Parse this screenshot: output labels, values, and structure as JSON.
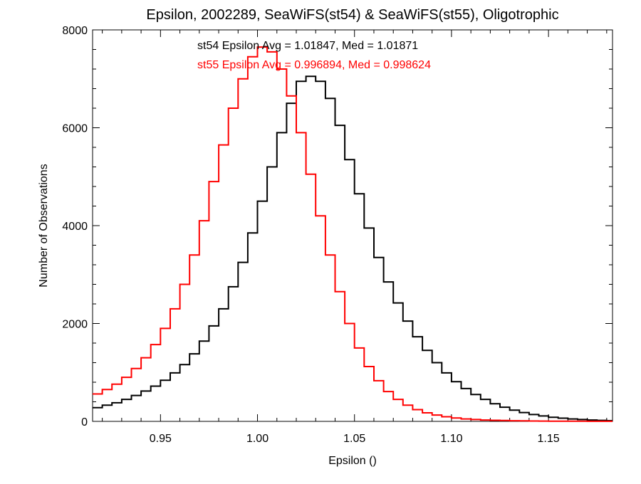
{
  "chart_data": {
    "type": "line",
    "title": "Epsilon, 2002289, SeaWiFS(st54) & SeaWiFS(st55), Oligotrophic",
    "xlabel": "Epsilon ()",
    "ylabel": "Number of Observations",
    "xlim": [
      0.915,
      1.183
    ],
    "ylim": [
      0,
      8000
    ],
    "x_ticks": [
      0.95,
      1.0,
      1.05,
      1.1,
      1.15
    ],
    "x_tick_labels": [
      "0.95",
      "1.00",
      "1.05",
      "1.10",
      "1.15"
    ],
    "y_ticks": [
      0,
      2000,
      4000,
      6000,
      8000
    ],
    "y_tick_labels": [
      "0",
      "2000",
      "4000",
      "6000",
      "8000"
    ],
    "grid": false,
    "annotations": [
      {
        "text": "st54 Epsilon Avg = 1.01847, Med = 1.01871",
        "color": "#000000"
      },
      {
        "text": "st55 Epsilon Avg = 0.996894, Med = 0.998624",
        "color": "#ff0000"
      }
    ],
    "series": [
      {
        "color": "#000000",
        "style": "step",
        "x": [
          0.915,
          0.92,
          0.925,
          0.93,
          0.935,
          0.94,
          0.945,
          0.95,
          0.955,
          0.96,
          0.965,
          0.97,
          0.975,
          0.98,
          0.985,
          0.99,
          0.995,
          1.0,
          1.005,
          1.01,
          1.015,
          1.02,
          1.025,
          1.03,
          1.035,
          1.04,
          1.045,
          1.05,
          1.055,
          1.06,
          1.065,
          1.07,
          1.075,
          1.08,
          1.085,
          1.09,
          1.095,
          1.1,
          1.105,
          1.11,
          1.115,
          1.12,
          1.125,
          1.13,
          1.135,
          1.14,
          1.145,
          1.15,
          1.155,
          1.16,
          1.165,
          1.17,
          1.175,
          1.18
        ],
        "values": [
          280,
          330,
          380,
          450,
          530,
          620,
          720,
          840,
          990,
          1160,
          1380,
          1640,
          1950,
          2300,
          2750,
          3250,
          3850,
          4500,
          5200,
          5900,
          6500,
          6950,
          7050,
          6950,
          6600,
          6050,
          5350,
          4650,
          3950,
          3350,
          2850,
          2420,
          2050,
          1730,
          1450,
          1200,
          990,
          810,
          670,
          550,
          450,
          360,
          290,
          230,
          180,
          140,
          110,
          85,
          65,
          50,
          38,
          28,
          20,
          15
        ]
      },
      {
        "color": "#ff0000",
        "style": "step",
        "x": [
          0.915,
          0.92,
          0.925,
          0.93,
          0.935,
          0.94,
          0.945,
          0.95,
          0.955,
          0.96,
          0.965,
          0.97,
          0.975,
          0.98,
          0.985,
          0.99,
          0.995,
          1.0,
          1.005,
          1.01,
          1.015,
          1.02,
          1.025,
          1.03,
          1.035,
          1.04,
          1.045,
          1.05,
          1.055,
          1.06,
          1.065,
          1.07,
          1.075,
          1.08,
          1.085,
          1.09,
          1.095,
          1.1,
          1.105,
          1.11,
          1.115,
          1.12,
          1.125,
          1.13,
          1.135,
          1.14,
          1.145,
          1.15,
          1.155,
          1.16,
          1.165,
          1.17,
          1.175,
          1.18
        ],
        "values": [
          560,
          650,
          760,
          900,
          1080,
          1300,
          1570,
          1900,
          2300,
          2800,
          3400,
          4100,
          4900,
          5650,
          6400,
          7000,
          7450,
          7650,
          7550,
          7200,
          6650,
          5900,
          5050,
          4200,
          3400,
          2650,
          2000,
          1500,
          1120,
          830,
          610,
          450,
          330,
          240,
          175,
          130,
          95,
          70,
          50,
          38,
          28,
          22,
          17,
          13,
          10,
          8,
          6,
          5,
          4,
          3,
          3,
          2,
          2,
          2
        ]
      }
    ]
  }
}
